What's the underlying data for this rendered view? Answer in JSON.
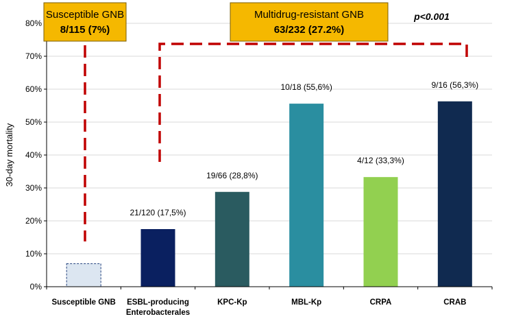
{
  "chart_data": {
    "type": "bar",
    "ylabel": "30-day mortality",
    "xlabel": "",
    "ylim": [
      0,
      80
    ],
    "yticks": [
      "0%",
      "10%",
      "20%",
      "30%",
      "40%",
      "50%",
      "60%",
      "70%",
      "80%"
    ],
    "grid": true,
    "categories": [
      "Susceptible GNB",
      "ESBL-producing\nEnterobacterales",
      "KPC-Kp",
      "MBL-Kp",
      "CRPA",
      "CRAB"
    ],
    "values": [
      7,
      17.5,
      28.8,
      55.6,
      33.3,
      56.3
    ],
    "data_labels": [
      "",
      "21/120 (17,5%)",
      "19/66 (28,8%)",
      "10/18 (55,6%)",
      "4/12 (33,3%)",
      "9/16 (56,3%)"
    ],
    "bar_colors": [
      "#dce6f1",
      "#0a2060",
      "#2a5b60",
      "#2a8ea0",
      "#92d050",
      "#102a50"
    ],
    "annotations": {
      "susceptible_box": {
        "title": "Susceptible GNB",
        "value": "8/115 (7%)"
      },
      "mdr_box": {
        "title": "Multidrug-resistant GNB",
        "value": "63/232 (27.2%)"
      },
      "p_value": "p<0.001"
    },
    "colors": {
      "box_fill": "#f5b800",
      "bracket": "#c00000",
      "grid": "#d9d9d9"
    }
  }
}
